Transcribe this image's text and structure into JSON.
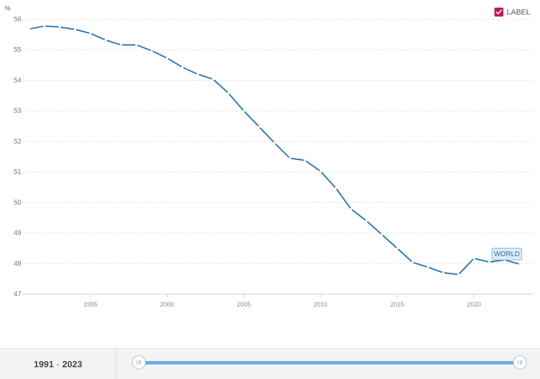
{
  "chart_data": {
    "type": "line",
    "unit_label": "%",
    "ylim": [
      47,
      56
    ],
    "y_ticks": [
      "47",
      "48",
      "49",
      "50",
      "51",
      "52",
      "53",
      "54",
      "55",
      "56"
    ],
    "xlim": [
      1991,
      2023
    ],
    "x_ticks": [
      "1995",
      "2000",
      "2005",
      "2010",
      "2015",
      "2020"
    ],
    "grid": true,
    "legend": "top-right",
    "series": [
      {
        "name": "WORLD",
        "color": "#2e7ab8",
        "x": [
          1991,
          1992,
          1993,
          1994,
          1995,
          1996,
          1997,
          1998,
          1999,
          2000,
          2001,
          2002,
          2003,
          2004,
          2005,
          2006,
          2007,
          2008,
          2009,
          2010,
          2011,
          2012,
          2013,
          2014,
          2015,
          2016,
          2017,
          2018,
          2019,
          2020,
          2021,
          2022,
          2023
        ],
        "values": [
          55.68,
          55.78,
          55.75,
          55.67,
          55.54,
          55.32,
          55.16,
          55.16,
          54.97,
          54.73,
          54.43,
          54.2,
          54.04,
          53.58,
          53.0,
          52.48,
          51.95,
          51.45,
          51.38,
          51.02,
          50.47,
          49.78,
          49.4,
          48.95,
          48.5,
          48.04,
          47.88,
          47.7,
          47.64,
          48.17,
          48.05,
          48.12,
          47.98
        ]
      }
    ]
  },
  "legend_box": {
    "label": "LABEL",
    "checked": true
  },
  "footer": {
    "range_start": "1991",
    "range_sep": "-",
    "range_end": "2023"
  }
}
